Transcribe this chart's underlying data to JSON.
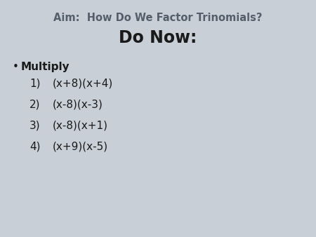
{
  "background_color": "#c8cfd6",
  "aim_text": "Aim:  How Do We Factor Trinomials?",
  "aim_color": "#555f6b",
  "aim_fontsize": 10.5,
  "donow_text": "Do Now:",
  "donow_color": "#1a1a1a",
  "donow_fontsize": 17,
  "bullet_char": "•",
  "bullet_text": "Multiply",
  "bullet_color": "#1a1a1a",
  "bullet_fontsize": 11,
  "items": [
    [
      "1)",
      "(x+8)(x+4)"
    ],
    [
      "2)",
      "(x-8)(x-3)"
    ],
    [
      "3)",
      "(x-8)(x+1)"
    ],
    [
      "4)",
      "(x+9)(x-5)"
    ]
  ],
  "items_color": "#1a1a1a",
  "items_fontsize": 11
}
